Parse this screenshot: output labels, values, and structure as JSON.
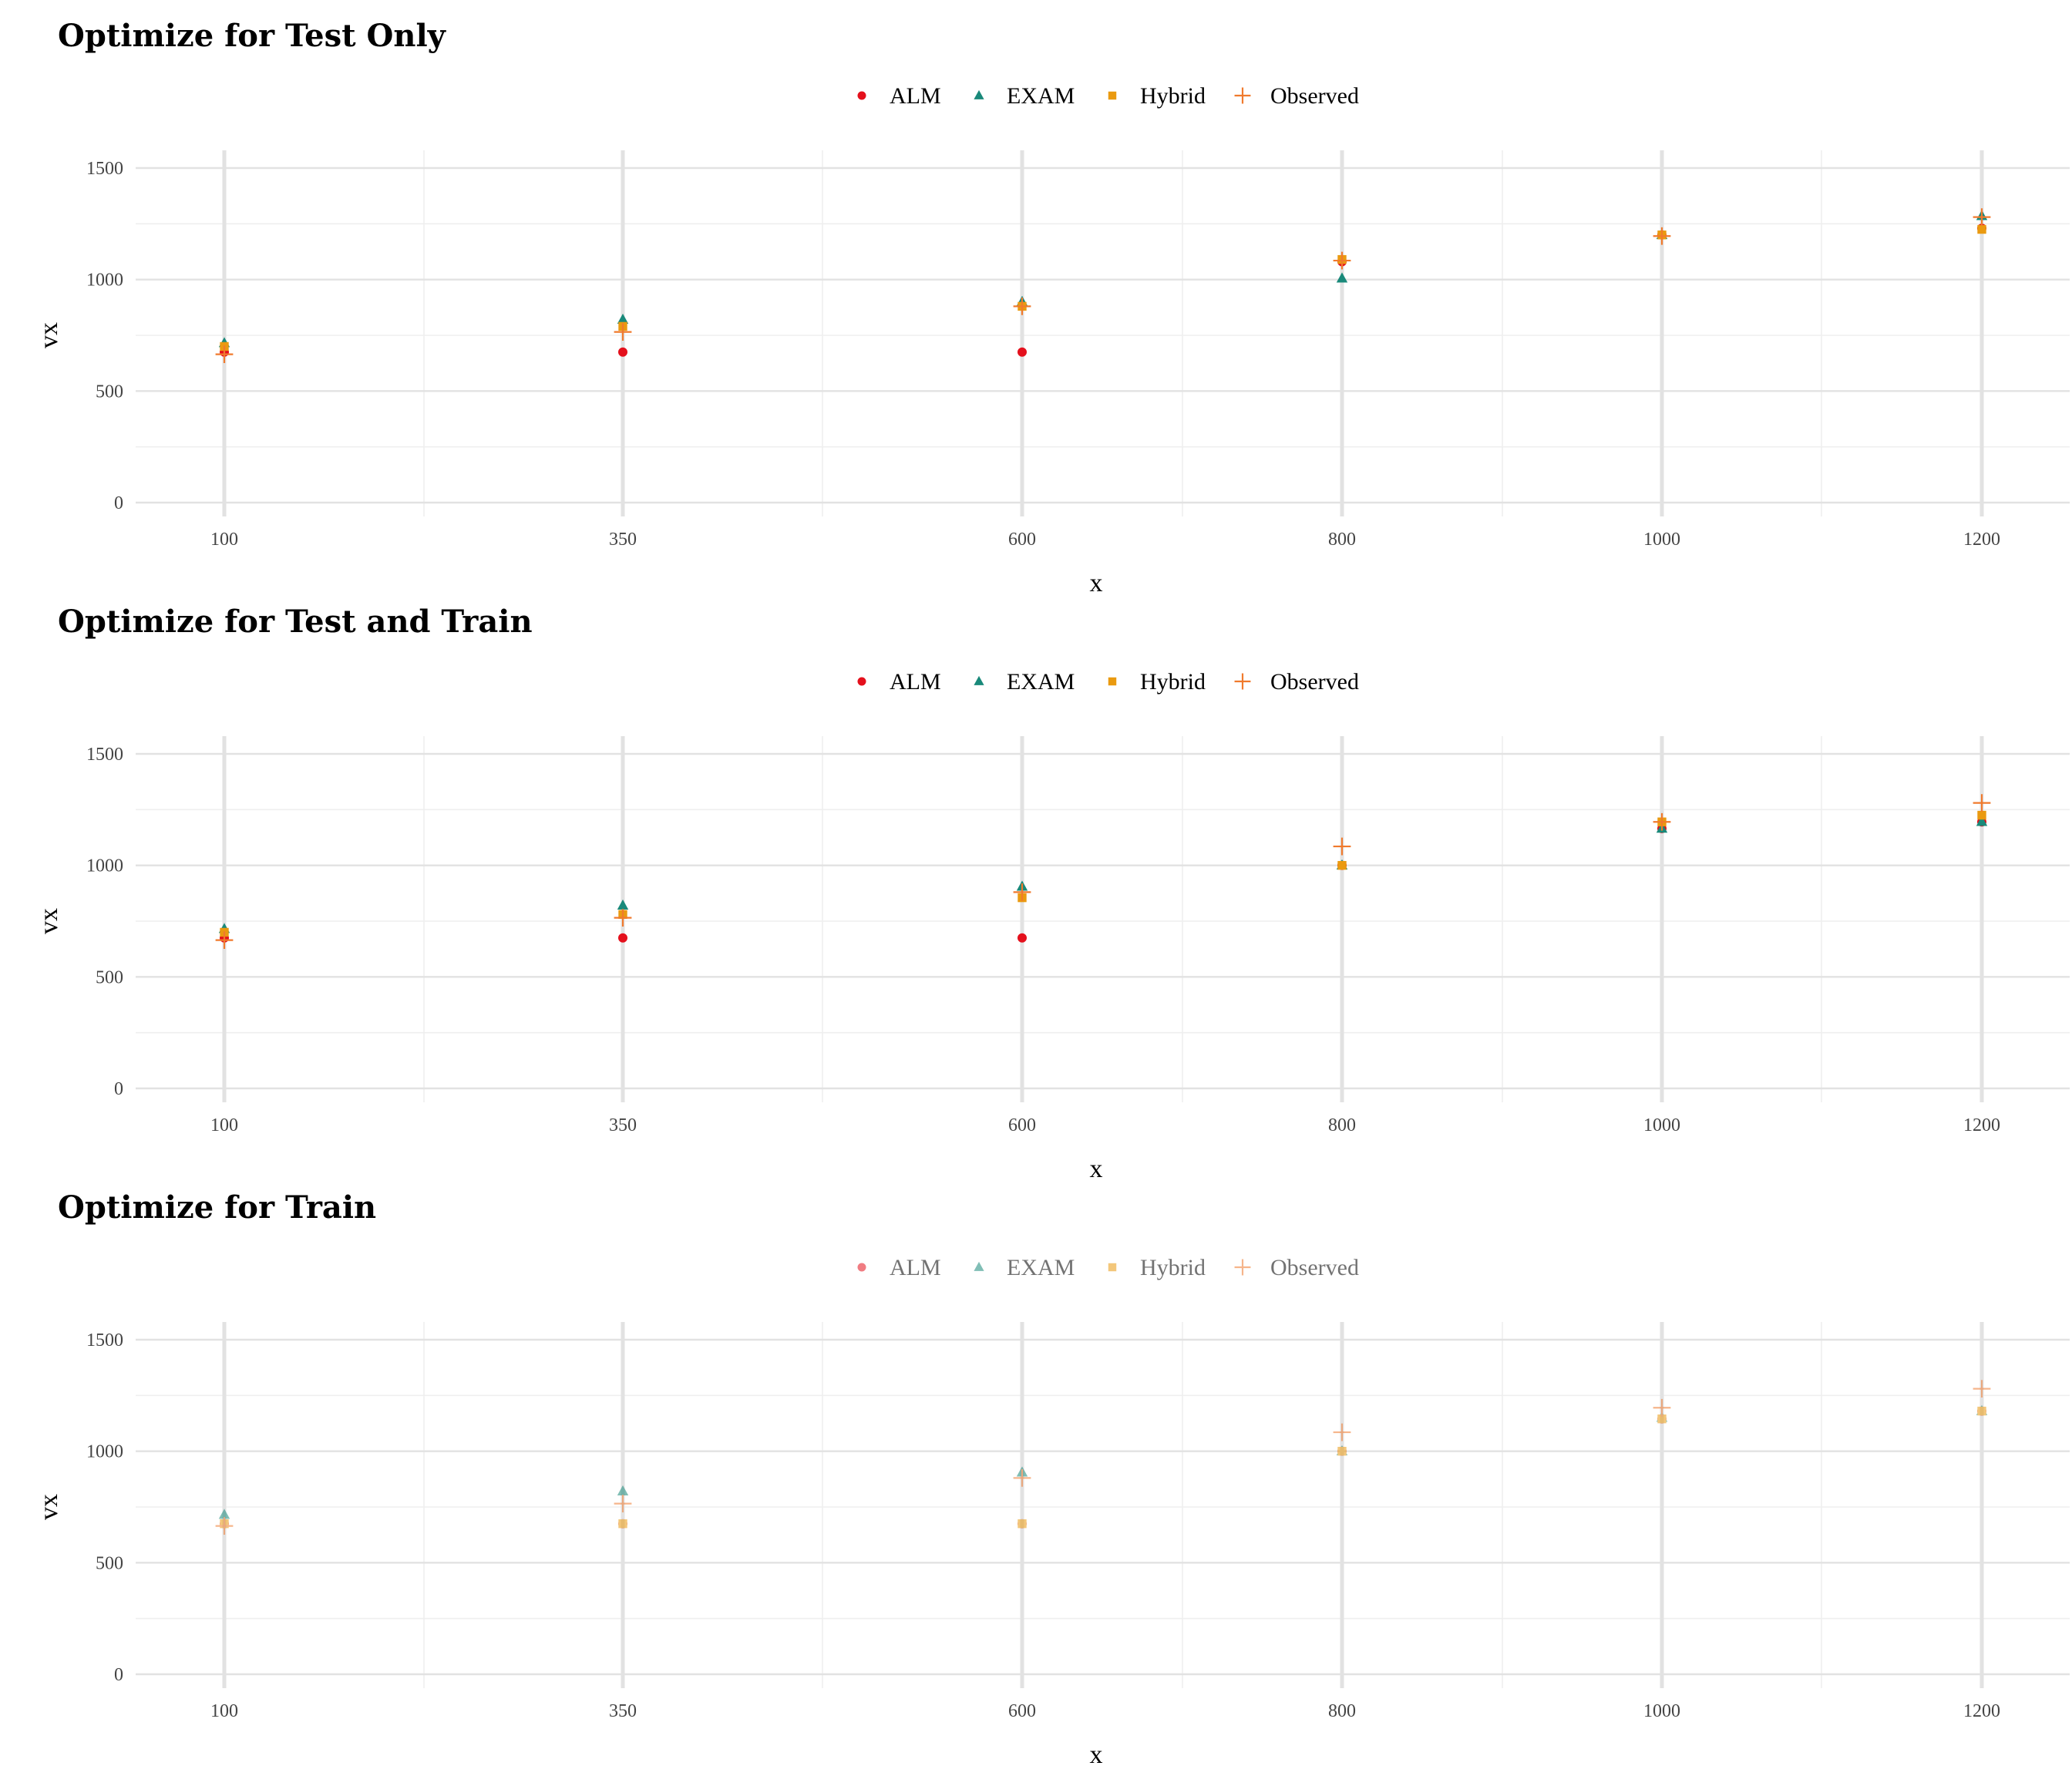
{
  "colors": {
    "ALM": "#e4101c",
    "EXAM": "#19897a",
    "Hybrid": "#ea9a10",
    "Observed": "#f07a2d"
  },
  "chart_data": [
    {
      "type": "scatter",
      "title": "Optimize for Test Only",
      "xlabel": "x",
      "ylabel": "vx",
      "legend_position": "top",
      "x_categories": [
        "100",
        "350",
        "600",
        "800",
        "1000",
        "1200"
      ],
      "ylim": [
        0,
        1500
      ],
      "y_ticks": [
        0,
        500,
        1000,
        1500
      ],
      "opacity": 1,
      "series": [
        {
          "name": "ALM",
          "shape": "circle",
          "x": [
            100,
            350,
            600,
            800,
            1000,
            1200
          ],
          "y": [
            675,
            675,
            675,
            1080,
            1200,
            1230
          ]
        },
        {
          "name": "EXAM",
          "shape": "triangle",
          "x": [
            100,
            350,
            600,
            800,
            1000,
            1200
          ],
          "y": [
            715,
            820,
            900,
            1005,
            1200,
            1285
          ]
        },
        {
          "name": "Hybrid",
          "shape": "square",
          "x": [
            100,
            350,
            600,
            800,
            1000,
            1200
          ],
          "y": [
            700,
            790,
            880,
            1090,
            1200,
            1225
          ]
        },
        {
          "name": "Observed",
          "shape": "plus",
          "x": [
            100,
            350,
            600,
            800,
            1000,
            1200
          ],
          "y": [
            665,
            765,
            880,
            1085,
            1195,
            1280
          ]
        }
      ]
    },
    {
      "type": "scatter",
      "title": "Optimize for Test and Train",
      "xlabel": "x",
      "ylabel": "vx",
      "legend_position": "top",
      "x_categories": [
        "100",
        "350",
        "600",
        "800",
        "1000",
        "1200"
      ],
      "ylim": [
        0,
        1500
      ],
      "y_ticks": [
        0,
        500,
        1000,
        1500
      ],
      "opacity": 1,
      "series": [
        {
          "name": "ALM",
          "shape": "circle",
          "x": [
            100,
            350,
            600,
            800,
            1000,
            1200
          ],
          "y": [
            675,
            675,
            675,
            1000,
            1165,
            1195
          ]
        },
        {
          "name": "EXAM",
          "shape": "triangle",
          "x": [
            100,
            350,
            600,
            800,
            1000,
            1200
          ],
          "y": [
            715,
            820,
            905,
            1000,
            1165,
            1195
          ]
        },
        {
          "name": "Hybrid",
          "shape": "square",
          "x": [
            100,
            350,
            600,
            800,
            1000,
            1200
          ],
          "y": [
            700,
            780,
            855,
            1000,
            1195,
            1225
          ]
        },
        {
          "name": "Observed",
          "shape": "plus",
          "x": [
            100,
            350,
            600,
            800,
            1000,
            1200
          ],
          "y": [
            665,
            765,
            880,
            1085,
            1195,
            1280
          ]
        }
      ]
    },
    {
      "type": "scatter",
      "title": "Optimize for Train",
      "xlabel": "x",
      "ylabel": "vx",
      "legend_position": "top",
      "x_categories": [
        "100",
        "350",
        "600",
        "800",
        "1000",
        "1200"
      ],
      "ylim": [
        0,
        1500
      ],
      "y_ticks": [
        0,
        500,
        1000,
        1500
      ],
      "opacity": 0.55,
      "series": [
        {
          "name": "ALM",
          "shape": "circle",
          "x": [
            100,
            350,
            600,
            800,
            1000,
            1200
          ],
          "y": [
            675,
            675,
            675,
            1000,
            1145,
            1180
          ]
        },
        {
          "name": "EXAM",
          "shape": "triangle",
          "x": [
            100,
            350,
            600,
            800,
            1000,
            1200
          ],
          "y": [
            715,
            820,
            905,
            1000,
            1150,
            1180
          ]
        },
        {
          "name": "Hybrid",
          "shape": "square",
          "x": [
            100,
            350,
            600,
            800,
            1000,
            1200
          ],
          "y": [
            675,
            675,
            675,
            1000,
            1145,
            1180
          ]
        },
        {
          "name": "Observed",
          "shape": "plus",
          "x": [
            100,
            350,
            600,
            800,
            1000,
            1200
          ],
          "y": [
            665,
            765,
            880,
            1085,
            1195,
            1280
          ]
        }
      ]
    }
  ]
}
